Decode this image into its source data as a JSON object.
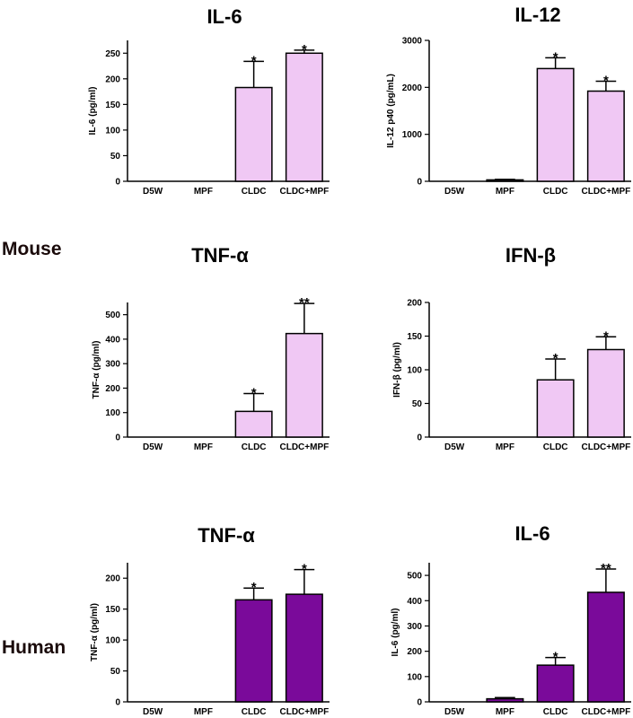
{
  "row_labels": {
    "mouse": "Mouse",
    "human": "Human"
  },
  "chart_data": [
    {
      "type": "bar",
      "title": "IL-6",
      "ylabel": "IL-6 (pg/ml)",
      "categories": [
        "D5W",
        "MPF",
        "CLDC",
        "CLDC+MPF"
      ],
      "values": [
        0,
        0,
        183,
        250
      ],
      "errors": [
        0,
        0,
        51,
        6
      ],
      "significance": [
        "",
        "",
        "*",
        "*"
      ],
      "ylim": [
        0,
        275
      ],
      "yticks": [
        0,
        50,
        100,
        150,
        200,
        250
      ],
      "bar_color": "#f0c8f4"
    },
    {
      "type": "bar",
      "title": "IL-12",
      "ylabel": "IL-12 p40 (pg/mL)",
      "categories": [
        "D5W",
        "MPF",
        "CLDC",
        "CLDC+MPF"
      ],
      "values": [
        0,
        30,
        2400,
        1920
      ],
      "errors": [
        0,
        10,
        230,
        210
      ],
      "significance": [
        "",
        "",
        "*",
        "*"
      ],
      "ylim": [
        0,
        3000
      ],
      "yticks": [
        0,
        1000,
        2000,
        3000
      ],
      "bar_color": "#f0c8f4"
    },
    {
      "type": "bar",
      "title": "TNF-α",
      "ylabel": "TNF-α (pg/ml)",
      "categories": [
        "D5W",
        "MPF",
        "CLDC",
        "CLDC+MPF"
      ],
      "values": [
        0,
        0,
        105,
        423
      ],
      "errors": [
        0,
        0,
        73,
        123
      ],
      "significance": [
        "",
        "",
        "*",
        "**"
      ],
      "ylim": [
        0,
        550
      ],
      "yticks": [
        0,
        100,
        200,
        300,
        400,
        500
      ],
      "bar_color": "#f0c8f4"
    },
    {
      "type": "bar",
      "title": "IFN-β",
      "ylabel": "IFN-β (pg/ml)",
      "categories": [
        "D5W",
        "MPF",
        "CLDC",
        "CLDC+MPF"
      ],
      "values": [
        0,
        0,
        85,
        130
      ],
      "errors": [
        0,
        0,
        31,
        19
      ],
      "significance": [
        "",
        "",
        "*",
        "*"
      ],
      "ylim": [
        0,
        200
      ],
      "yticks": [
        0,
        50,
        100,
        150,
        200
      ],
      "bar_color": "#f0c8f4"
    },
    {
      "type": "bar",
      "title": "TNF-α",
      "ylabel": "TNF-α (pg/ml)",
      "categories": [
        "D5W",
        "MPF",
        "CLDC",
        "CLDC+MPF"
      ],
      "values": [
        0,
        0,
        165,
        174
      ],
      "errors": [
        0,
        0,
        19,
        40
      ],
      "significance": [
        "",
        "",
        "*",
        "*"
      ],
      "ylim": [
        0,
        225
      ],
      "yticks": [
        0,
        50,
        100,
        150,
        200
      ],
      "bar_color": "#7a0a9a"
    },
    {
      "type": "bar",
      "title": "IL-6",
      "ylabel": "IL-6 (pg/ml)",
      "categories": [
        "D5W",
        "MPF",
        "CLDC",
        "CLDC+MPF"
      ],
      "values": [
        0,
        12,
        145,
        433
      ],
      "errors": [
        0,
        5,
        30,
        92
      ],
      "significance": [
        "",
        "",
        "*",
        "**"
      ],
      "ylim": [
        0,
        550
      ],
      "yticks": [
        0,
        100,
        200,
        300,
        400,
        500
      ],
      "bar_color": "#7a0a9a"
    }
  ]
}
